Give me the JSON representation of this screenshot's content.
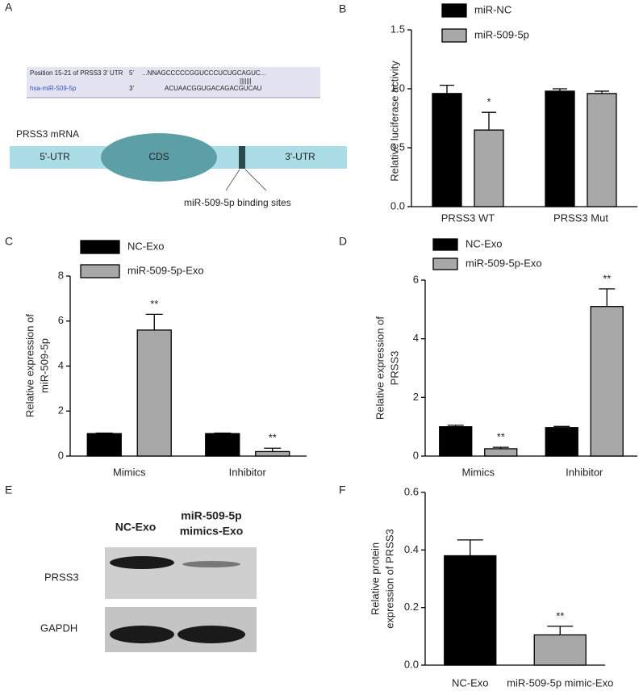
{
  "panel_labels": [
    "A",
    "B",
    "C",
    "D",
    "E",
    "F"
  ],
  "diagram": {
    "alignment_title": "Position 15-21 of PRSS3 3' UTR",
    "target_end": "5'",
    "target_seq": "...NNAGCCCCCGGUCCCUCUGCAGUC...",
    "pairing": "|||||||",
    "mirna_name": "hsa-miR-509-5p",
    "mirna_end": "3'",
    "mirna_seq": "ACUAACGGUGACAGACGUCAU",
    "mrna_label": "PRSS3 mRNA",
    "utr5": "5'-UTR",
    "cds": "CDS",
    "utr3": "3'-UTR",
    "sites_label": "miR-509-5p  binding sites"
  },
  "blot": {
    "lanes": [
      "NC-Exo",
      [
        "miR-509-5p",
        "mimics-Exo"
      ]
    ],
    "rows": [
      "PRSS3",
      "GAPDH"
    ]
  },
  "chart_data": [
    {
      "type": "bar",
      "ylabel": [
        "Relative luciferase activity"
      ],
      "categories": [
        "PRSS3 WT",
        "PRSS3 Mut"
      ],
      "series": [
        {
          "name": "miR-NC",
          "color": "#000000",
          "values": [
            0.96,
            0.98
          ],
          "errors": [
            0.07,
            0.02
          ],
          "labels": [
            null,
            null
          ]
        },
        {
          "name": "miR-509-5p",
          "color": "#a8a8a8",
          "values": [
            0.65,
            0.96
          ],
          "errors": [
            0.15,
            0.02
          ],
          "labels": [
            "*",
            null
          ]
        }
      ],
      "ylim": [
        0,
        1.5
      ],
      "yticks": [
        {
          "value": 0,
          "label": "0.0"
        },
        0.5,
        {
          "value": 1,
          "label": "1.0"
        },
        1.5
      ]
    },
    {
      "type": "bar",
      "ylabel": [
        "Relative expression of",
        "miR-509-5p"
      ],
      "categories": [
        "Mimics",
        "Inhibitor"
      ],
      "series": [
        {
          "name": "NC-Exo",
          "color": "#000000",
          "values": [
            1.0,
            1.0
          ],
          "errors": [
            0.02,
            0.02
          ],
          "labels": [
            null,
            null
          ]
        },
        {
          "name": "miR-509-5p-Exo",
          "color": "#a8a8a8",
          "values": [
            5.6,
            0.2
          ],
          "errors": [
            0.7,
            0.15
          ],
          "labels": [
            "**",
            "**"
          ]
        }
      ],
      "ylim": [
        0,
        8
      ],
      "yticks": [
        0,
        2,
        4,
        6,
        8
      ]
    },
    {
      "type": "bar",
      "ylabel": [
        "Relative expression of",
        "PRSS3"
      ],
      "categories": [
        "Mimics",
        "Inhibitor"
      ],
      "series": [
        {
          "name": "NC-Exo",
          "color": "#000000",
          "values": [
            1.0,
            0.97
          ],
          "errors": [
            0.05,
            0.04
          ],
          "labels": [
            null,
            null
          ]
        },
        {
          "name": "miR-509-5p-Exo",
          "color": "#a8a8a8",
          "values": [
            0.25,
            5.1
          ],
          "errors": [
            0.05,
            0.6
          ],
          "labels": [
            "**",
            "**"
          ]
        }
      ],
      "ylim": [
        0,
        6
      ],
      "yticks": [
        0,
        2,
        4,
        6
      ]
    },
    {
      "type": "bar",
      "ylabel": [
        "Relative protein",
        "expression of PRSS3"
      ],
      "categories": [
        "NC-Exo",
        "miR-509-5p mimic-Exo"
      ],
      "values": [
        0.38,
        0.105
      ],
      "errors": [
        0.055,
        0.03
      ],
      "colors": [
        "#000000",
        "#a8a8a8"
      ],
      "labels": [
        null,
        "**"
      ],
      "ylim": [
        0,
        0.6
      ],
      "yticks": [
        {
          "value": 0,
          "label": "0.0"
        },
        0.2,
        0.4,
        0.6
      ]
    }
  ]
}
